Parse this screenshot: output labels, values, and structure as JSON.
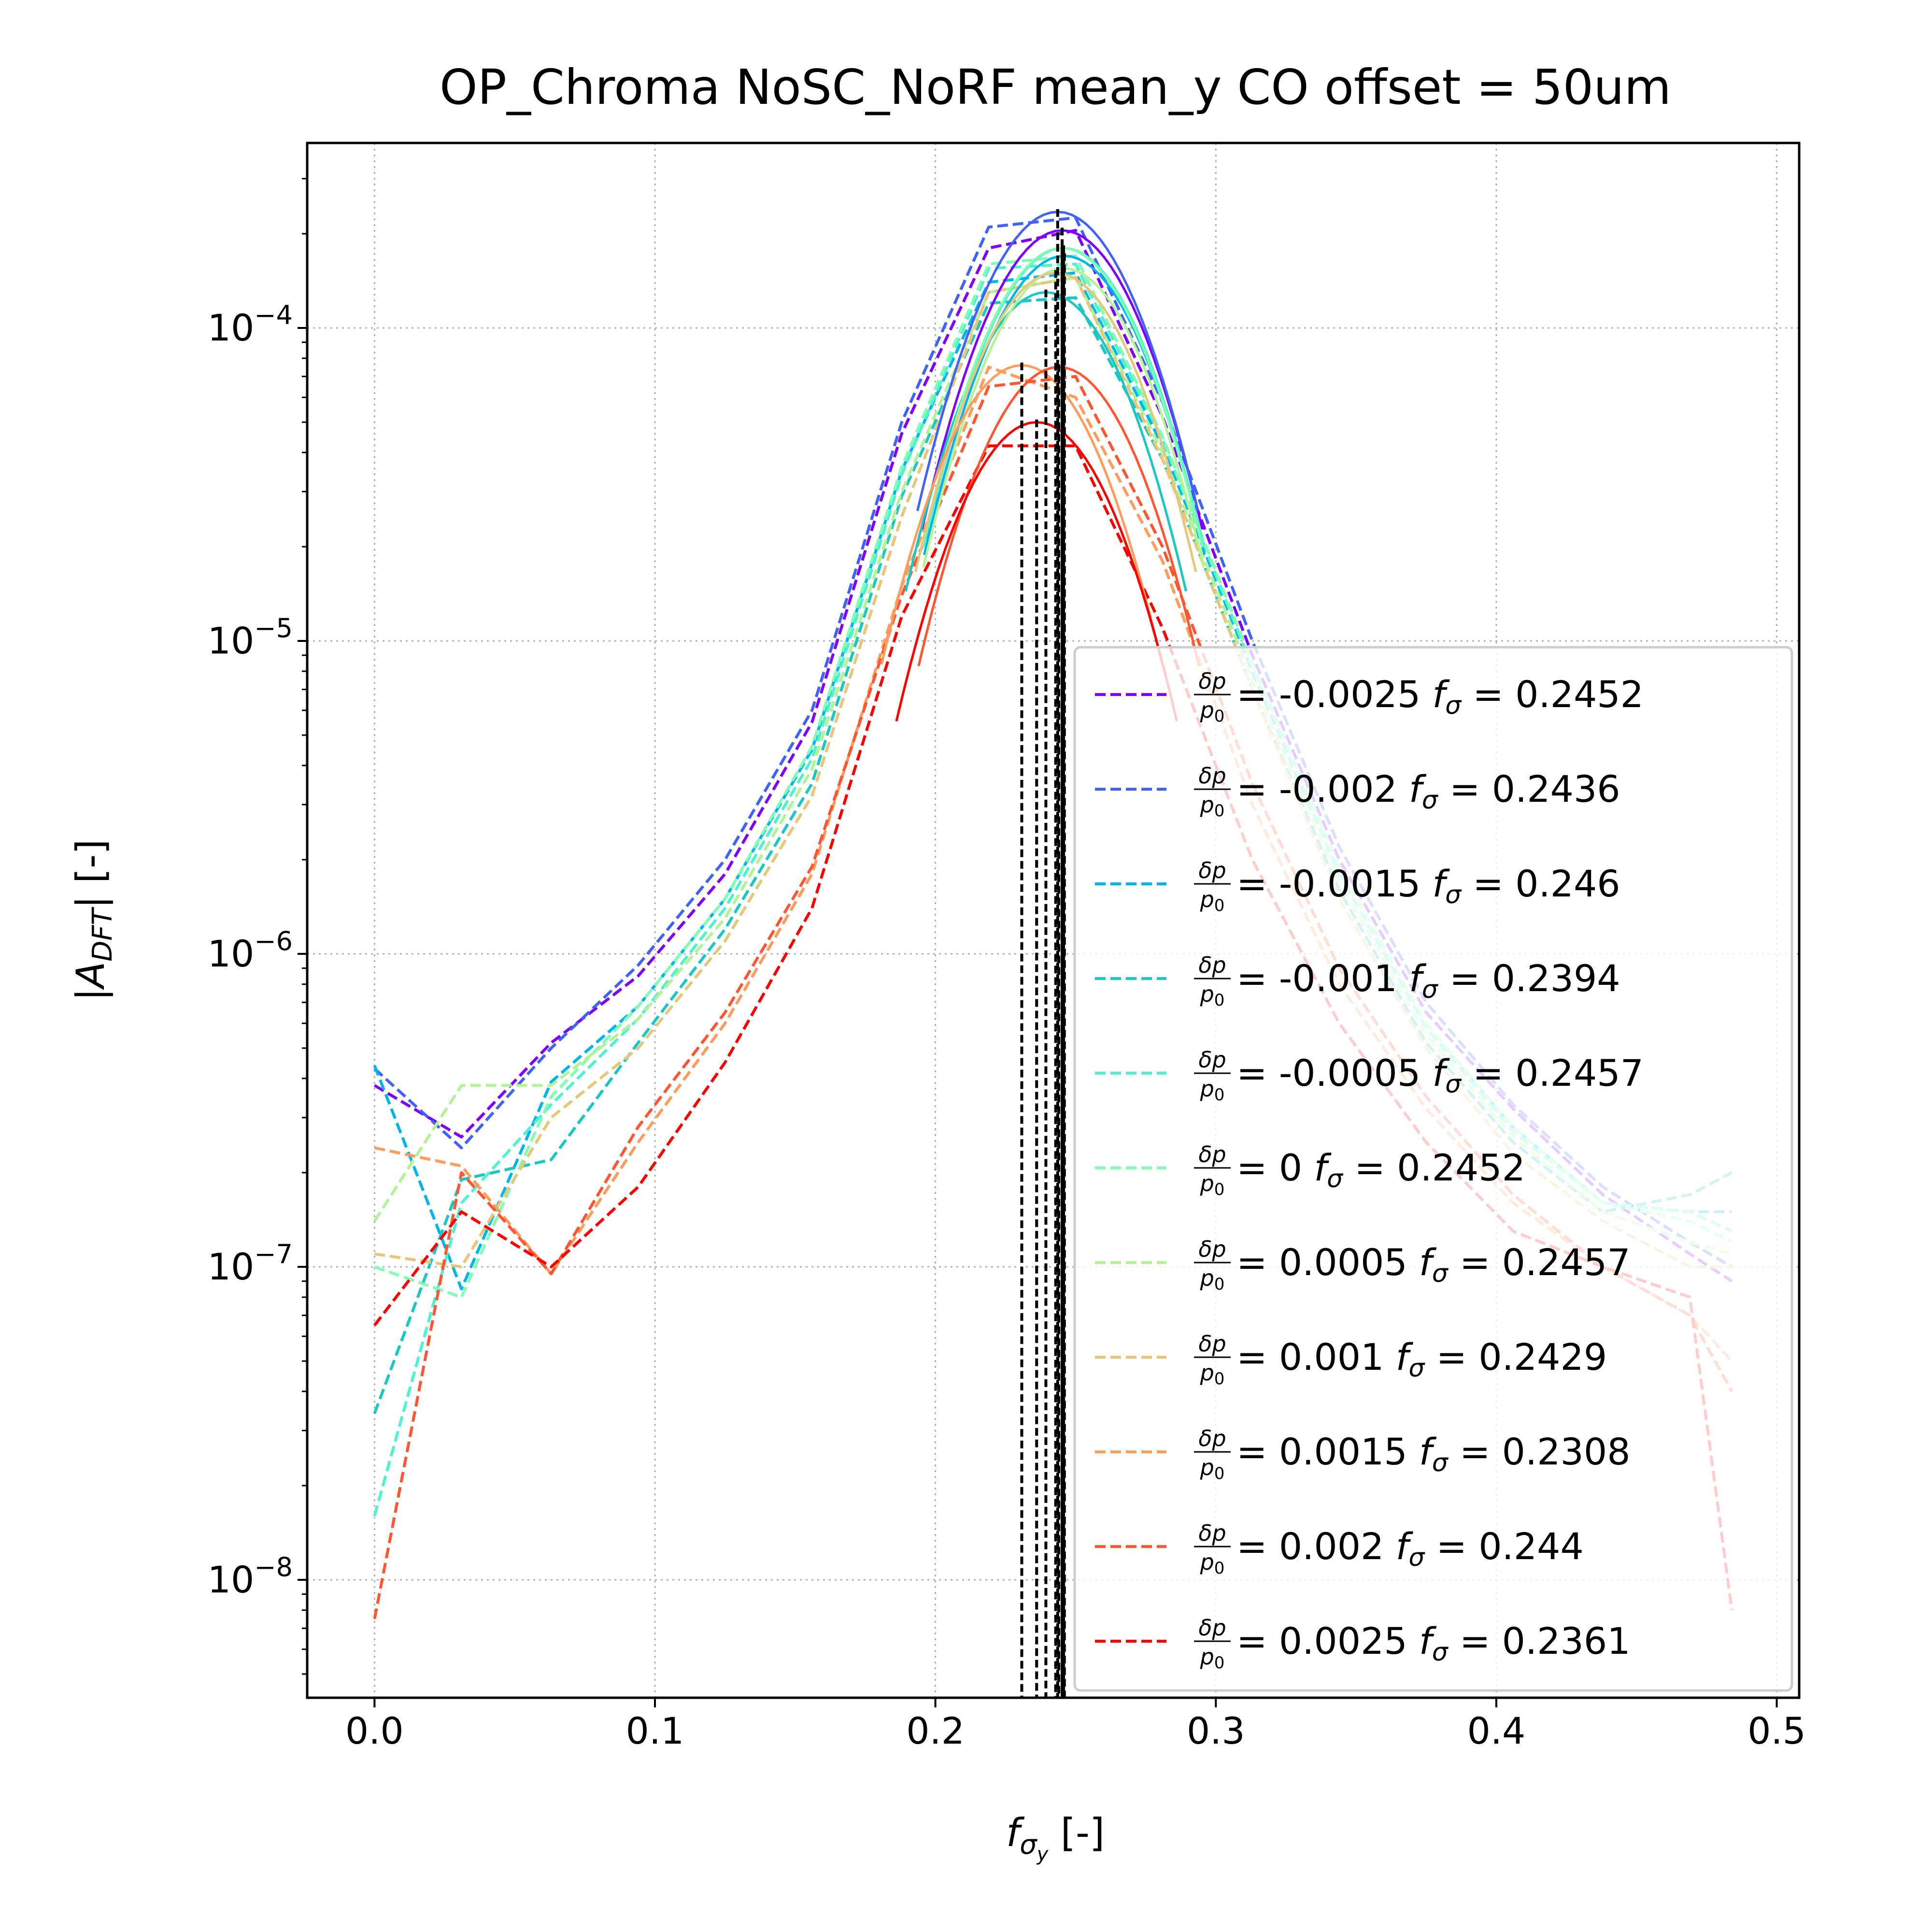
{
  "chart_data": {
    "type": "line",
    "title": "OP_Chroma NoSC_NoRF mean_y  CO offset = 50um",
    "xlabel_main": "f",
    "xlabel_sub": "σ",
    "xlabel_subsub": "y",
    "xlabel_unit": " [-]",
    "ylabel_main": "|A",
    "ylabel_sub": "DFT",
    "ylabel_unit": "| [-]",
    "y_scale": "log",
    "xlim": [
      -0.024,
      0.508
    ],
    "ylim": [
      4.2e-09,
      0.00039
    ],
    "grid": true,
    "legend_position": "lower-right",
    "x_ticks": [
      {
        "value": 0.0,
        "label": "0.0"
      },
      {
        "value": 0.1,
        "label": "0.1"
      },
      {
        "value": 0.2,
        "label": "0.2"
      },
      {
        "value": 0.3,
        "label": "0.3"
      },
      {
        "value": 0.4,
        "label": "0.4"
      },
      {
        "value": 0.5,
        "label": "0.5"
      }
    ],
    "y_ticks": [
      {
        "value": 1e-08,
        "base": "10",
        "exp": "−8"
      },
      {
        "value": 1e-07,
        "base": "10",
        "exp": "−7"
      },
      {
        "value": 1e-06,
        "base": "10",
        "exp": "−6"
      },
      {
        "value": 1e-05,
        "base": "10",
        "exp": "−5"
      },
      {
        "value": 0.0001,
        "base": "10",
        "exp": "−4"
      }
    ],
    "legend_symbol_num": "δp",
    "legend_symbol_den": "p",
    "legend_symbol_den_sub": "0",
    "legend_f_label": "f",
    "legend_f_sub": "σ",
    "series": [
      {
        "name": "-0.0025",
        "f_sigma": "0.2452",
        "color": "#8000ff",
        "x": [
          0,
          0.031,
          0.063,
          0.094,
          0.125,
          0.156,
          0.188,
          0.219,
          0.25,
          0.281,
          0.313,
          0.344,
          0.375,
          0.406,
          0.438,
          0.469,
          0.484
        ],
        "y": [
          3.8e-07,
          2.6e-07,
          5.2e-07,
          8.5e-07,
          1.8e-06,
          5.5e-06,
          4.6e-05,
          0.00018,
          0.000205,
          5.2e-05,
          9e-06,
          2e-06,
          6.5e-07,
          3.2e-07,
          1.7e-07,
          1.1e-07,
          9e-08
        ],
        "peak_x": 0.2452,
        "peak_y": 0.000205
      },
      {
        "name": "-0.002",
        "f_sigma": "0.2436",
        "color": "#4062fa",
        "x": [
          0,
          0.031,
          0.063,
          0.094,
          0.125,
          0.156,
          0.188,
          0.219,
          0.25,
          0.281,
          0.313,
          0.344,
          0.375,
          0.406,
          0.438,
          0.469,
          0.484
        ],
        "y": [
          4.3e-07,
          2.4e-07,
          5e-07,
          9.2e-07,
          2e-06,
          6e-06,
          5e-05,
          0.00021,
          0.000225,
          5.8e-05,
          1e-05,
          2.2e-06,
          7e-07,
          3.3e-07,
          1.8e-07,
          1.2e-07,
          1e-07
        ],
        "peak_x": 0.2436,
        "peak_y": 0.000235
      },
      {
        "name": "-0.0015",
        "f_sigma": "0.246",
        "color": "#00b5eb",
        "x": [
          0,
          0.031,
          0.063,
          0.094,
          0.125,
          0.156,
          0.188,
          0.219,
          0.25,
          0.281,
          0.313,
          0.344,
          0.375,
          0.406,
          0.438,
          0.469,
          0.484
        ],
        "y": [
          4.4e-07,
          8.5e-08,
          3.9e-07,
          6.8e-07,
          1.5e-06,
          4.5e-06,
          3.5e-05,
          0.00014,
          0.00015,
          4.2e-05,
          8e-06,
          1.8e-06,
          5.8e-07,
          2.8e-07,
          1.6e-07,
          1.5e-07,
          1.5e-07
        ],
        "peak_x": 0.246,
        "peak_y": 0.00017
      },
      {
        "name": "-0.001",
        "f_sigma": "0.2394",
        "color": "#1ac7c2",
        "x": [
          0,
          0.031,
          0.063,
          0.094,
          0.125,
          0.156,
          0.188,
          0.219,
          0.25,
          0.281,
          0.313,
          0.344,
          0.375,
          0.406,
          0.438,
          0.469,
          0.484
        ],
        "y": [
          3.4e-08,
          1.9e-07,
          2.2e-07,
          5.2e-07,
          1.2e-06,
          3.5e-06,
          2.9e-05,
          0.00012,
          0.000125,
          3.8e-05,
          7e-06,
          1.6e-06,
          5.2e-07,
          2.5e-07,
          1.5e-07,
          1.7e-07,
          2e-07
        ],
        "peak_x": 0.2394,
        "peak_y": 0.00013
      },
      {
        "name": "-0.0005",
        "f_sigma": "0.2457",
        "color": "#4df3ce",
        "x": [
          0,
          0.031,
          0.063,
          0.094,
          0.125,
          0.156,
          0.188,
          0.219,
          0.25,
          0.281,
          0.313,
          0.344,
          0.375,
          0.406,
          0.438,
          0.469,
          0.484
        ],
        "y": [
          1.6e-08,
          1.6e-07,
          3.3e-07,
          6.2e-07,
          1.4e-06,
          4.2e-06,
          3.4e-05,
          0.000155,
          0.00016,
          4.4e-05,
          8.2e-06,
          1.8e-06,
          5.8e-07,
          2.7e-07,
          1.6e-07,
          1.5e-07,
          1.3e-07
        ],
        "peak_x": 0.2457,
        "peak_y": 0.00018
      },
      {
        "name": "0",
        "f_sigma": "0.2452",
        "color": "#80ffb4",
        "x": [
          0,
          0.031,
          0.063,
          0.094,
          0.125,
          0.156,
          0.188,
          0.219,
          0.25,
          0.281,
          0.313,
          0.344,
          0.375,
          0.406,
          0.438,
          0.469,
          0.484
        ],
        "y": [
          1e-07,
          8e-08,
          3.5e-07,
          6.8e-07,
          1.5e-06,
          4.6e-06,
          3.6e-05,
          0.00016,
          0.00017,
          4.5e-05,
          8.5e-06,
          1.9e-06,
          6e-07,
          2.8e-07,
          1.6e-07,
          1.4e-07,
          1.2e-07
        ],
        "peak_x": 0.2452,
        "peak_y": 0.00018
      },
      {
        "name": "0.0005",
        "f_sigma": "0.2457",
        "color": "#b3f396",
        "x": [
          0,
          0.031,
          0.063,
          0.094,
          0.125,
          0.156,
          0.188,
          0.219,
          0.25,
          0.281,
          0.313,
          0.344,
          0.375,
          0.406,
          0.438,
          0.469,
          0.484
        ],
        "y": [
          1.4e-07,
          3.8e-07,
          3.8e-07,
          6.2e-07,
          1.3e-06,
          3.9e-06,
          3e-05,
          0.00013,
          0.000145,
          4e-05,
          7.5e-06,
          1.7e-06,
          5.5e-07,
          2.6e-07,
          1.5e-07,
          1.2e-07,
          1.1e-07
        ],
        "peak_x": 0.2457,
        "peak_y": 0.000155
      },
      {
        "name": "0.001",
        "f_sigma": "0.2429",
        "color": "#e6c779",
        "x": [
          0,
          0.031,
          0.063,
          0.094,
          0.125,
          0.156,
          0.188,
          0.219,
          0.25,
          0.281,
          0.313,
          0.344,
          0.375,
          0.406,
          0.438,
          0.469,
          0.484
        ],
        "y": [
          1.1e-07,
          1e-07,
          3e-07,
          5e-07,
          1.1e-06,
          3.2e-06,
          2.5e-05,
          0.00013,
          0.000145,
          3.8e-05,
          7e-06,
          1.5e-06,
          5e-07,
          2.3e-07,
          1.4e-07,
          1e-07,
          1e-07
        ],
        "peak_x": 0.2429,
        "peak_y": 0.00015
      },
      {
        "name": "0.0015",
        "f_sigma": "0.2308",
        "color": "#ff9b5b",
        "x": [
          0,
          0.031,
          0.063,
          0.094,
          0.125,
          0.156,
          0.188,
          0.219,
          0.25,
          0.281,
          0.313,
          0.344,
          0.375,
          0.406,
          0.438,
          0.469,
          0.484
        ],
        "y": [
          2.4e-07,
          2.1e-07,
          9.5e-08,
          2.5e-07,
          6e-07,
          1.8e-06,
          1.5e-05,
          7.5e-05,
          6e-05,
          1.8e-05,
          3e-06,
          8e-07,
          3.2e-07,
          1.6e-07,
          1e-07,
          7e-08,
          5e-08
        ],
        "peak_x": 0.2308,
        "peak_y": 7.6e-05
      },
      {
        "name": "0.002",
        "f_sigma": "0.244",
        "color": "#ff5530",
        "x": [
          0,
          0.031,
          0.063,
          0.094,
          0.125,
          0.156,
          0.188,
          0.219,
          0.25,
          0.281,
          0.313,
          0.344,
          0.375,
          0.406,
          0.438,
          0.469,
          0.484
        ],
        "y": [
          7.5e-09,
          2e-07,
          9.5e-08,
          2.8e-07,
          6.5e-07,
          1.9e-06,
          1.4e-05,
          6.5e-05,
          7e-05,
          2e-05,
          3.5e-06,
          9e-07,
          3.5e-07,
          1.7e-07,
          1e-07,
          7e-08,
          4e-08
        ],
        "peak_x": 0.244,
        "peak_y": 7.5e-05
      },
      {
        "name": "0.0025",
        "f_sigma": "0.2361",
        "color": "#ff0000",
        "x": [
          0,
          0.031,
          0.063,
          0.094,
          0.125,
          0.156,
          0.188,
          0.219,
          0.25,
          0.281,
          0.313,
          0.344,
          0.375,
          0.406,
          0.438,
          0.469,
          0.484
        ],
        "y": [
          6.5e-08,
          1.5e-07,
          1e-07,
          1.8e-07,
          4.5e-07,
          1.4e-06,
          1.2e-05,
          4.2e-05,
          4.2e-05,
          1.1e-05,
          2e-06,
          6e-07,
          2.5e-07,
          1.3e-07,
          1e-07,
          8e-08,
          8e-09
        ],
        "peak_x": 0.2361,
        "peak_y": 5e-05
      }
    ]
  }
}
